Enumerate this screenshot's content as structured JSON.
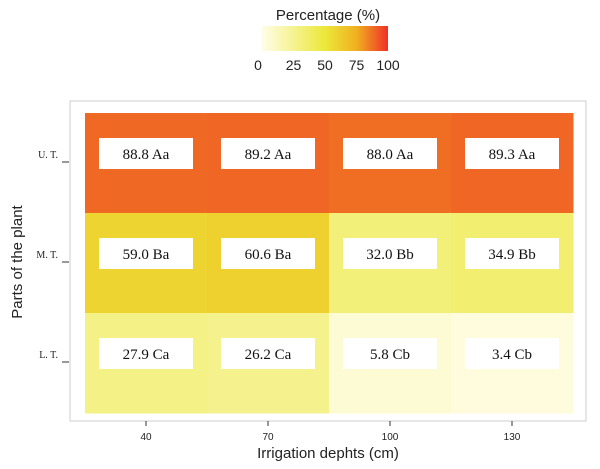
{
  "chart_data": {
    "type": "heatmap",
    "legend": {
      "title": "Percentage (%)",
      "ticks": [
        0,
        25,
        50,
        75,
        100
      ],
      "placement": "top-center",
      "colors": [
        "#fffde8",
        "#ece83a",
        "#f0b020",
        "#f03028"
      ]
    },
    "xlabel": "Irrigation dephts (cm)",
    "ylabel": "Parts of the plant",
    "x_categories": [
      "40",
      "70",
      "100",
      "130"
    ],
    "y_categories": [
      "U. T.",
      "M. T.",
      "L. T."
    ],
    "cells": [
      [
        {
          "value": 88.8,
          "label": "88.8 Aa"
        },
        {
          "value": 89.2,
          "label": "89.2 Aa"
        },
        {
          "value": 88.0,
          "label": "88.0 Aa"
        },
        {
          "value": 89.3,
          "label": "89.3 Aa"
        }
      ],
      [
        {
          "value": 59.0,
          "label": "59.0 Ba"
        },
        {
          "value": 60.6,
          "label": "60.6 Ba"
        },
        {
          "value": 32.0,
          "label": "32.0 Bb"
        },
        {
          "value": 34.9,
          "label": "34.9 Bb"
        }
      ],
      [
        {
          "value": 27.9,
          "label": "27.9 Ca"
        },
        {
          "value": 26.2,
          "label": "26.2 Ca"
        },
        {
          "value": 5.8,
          "label": "5.8 Cb"
        },
        {
          "value": 3.4,
          "label": "3.4 Cb"
        }
      ]
    ],
    "value_range": [
      0,
      100
    ]
  }
}
